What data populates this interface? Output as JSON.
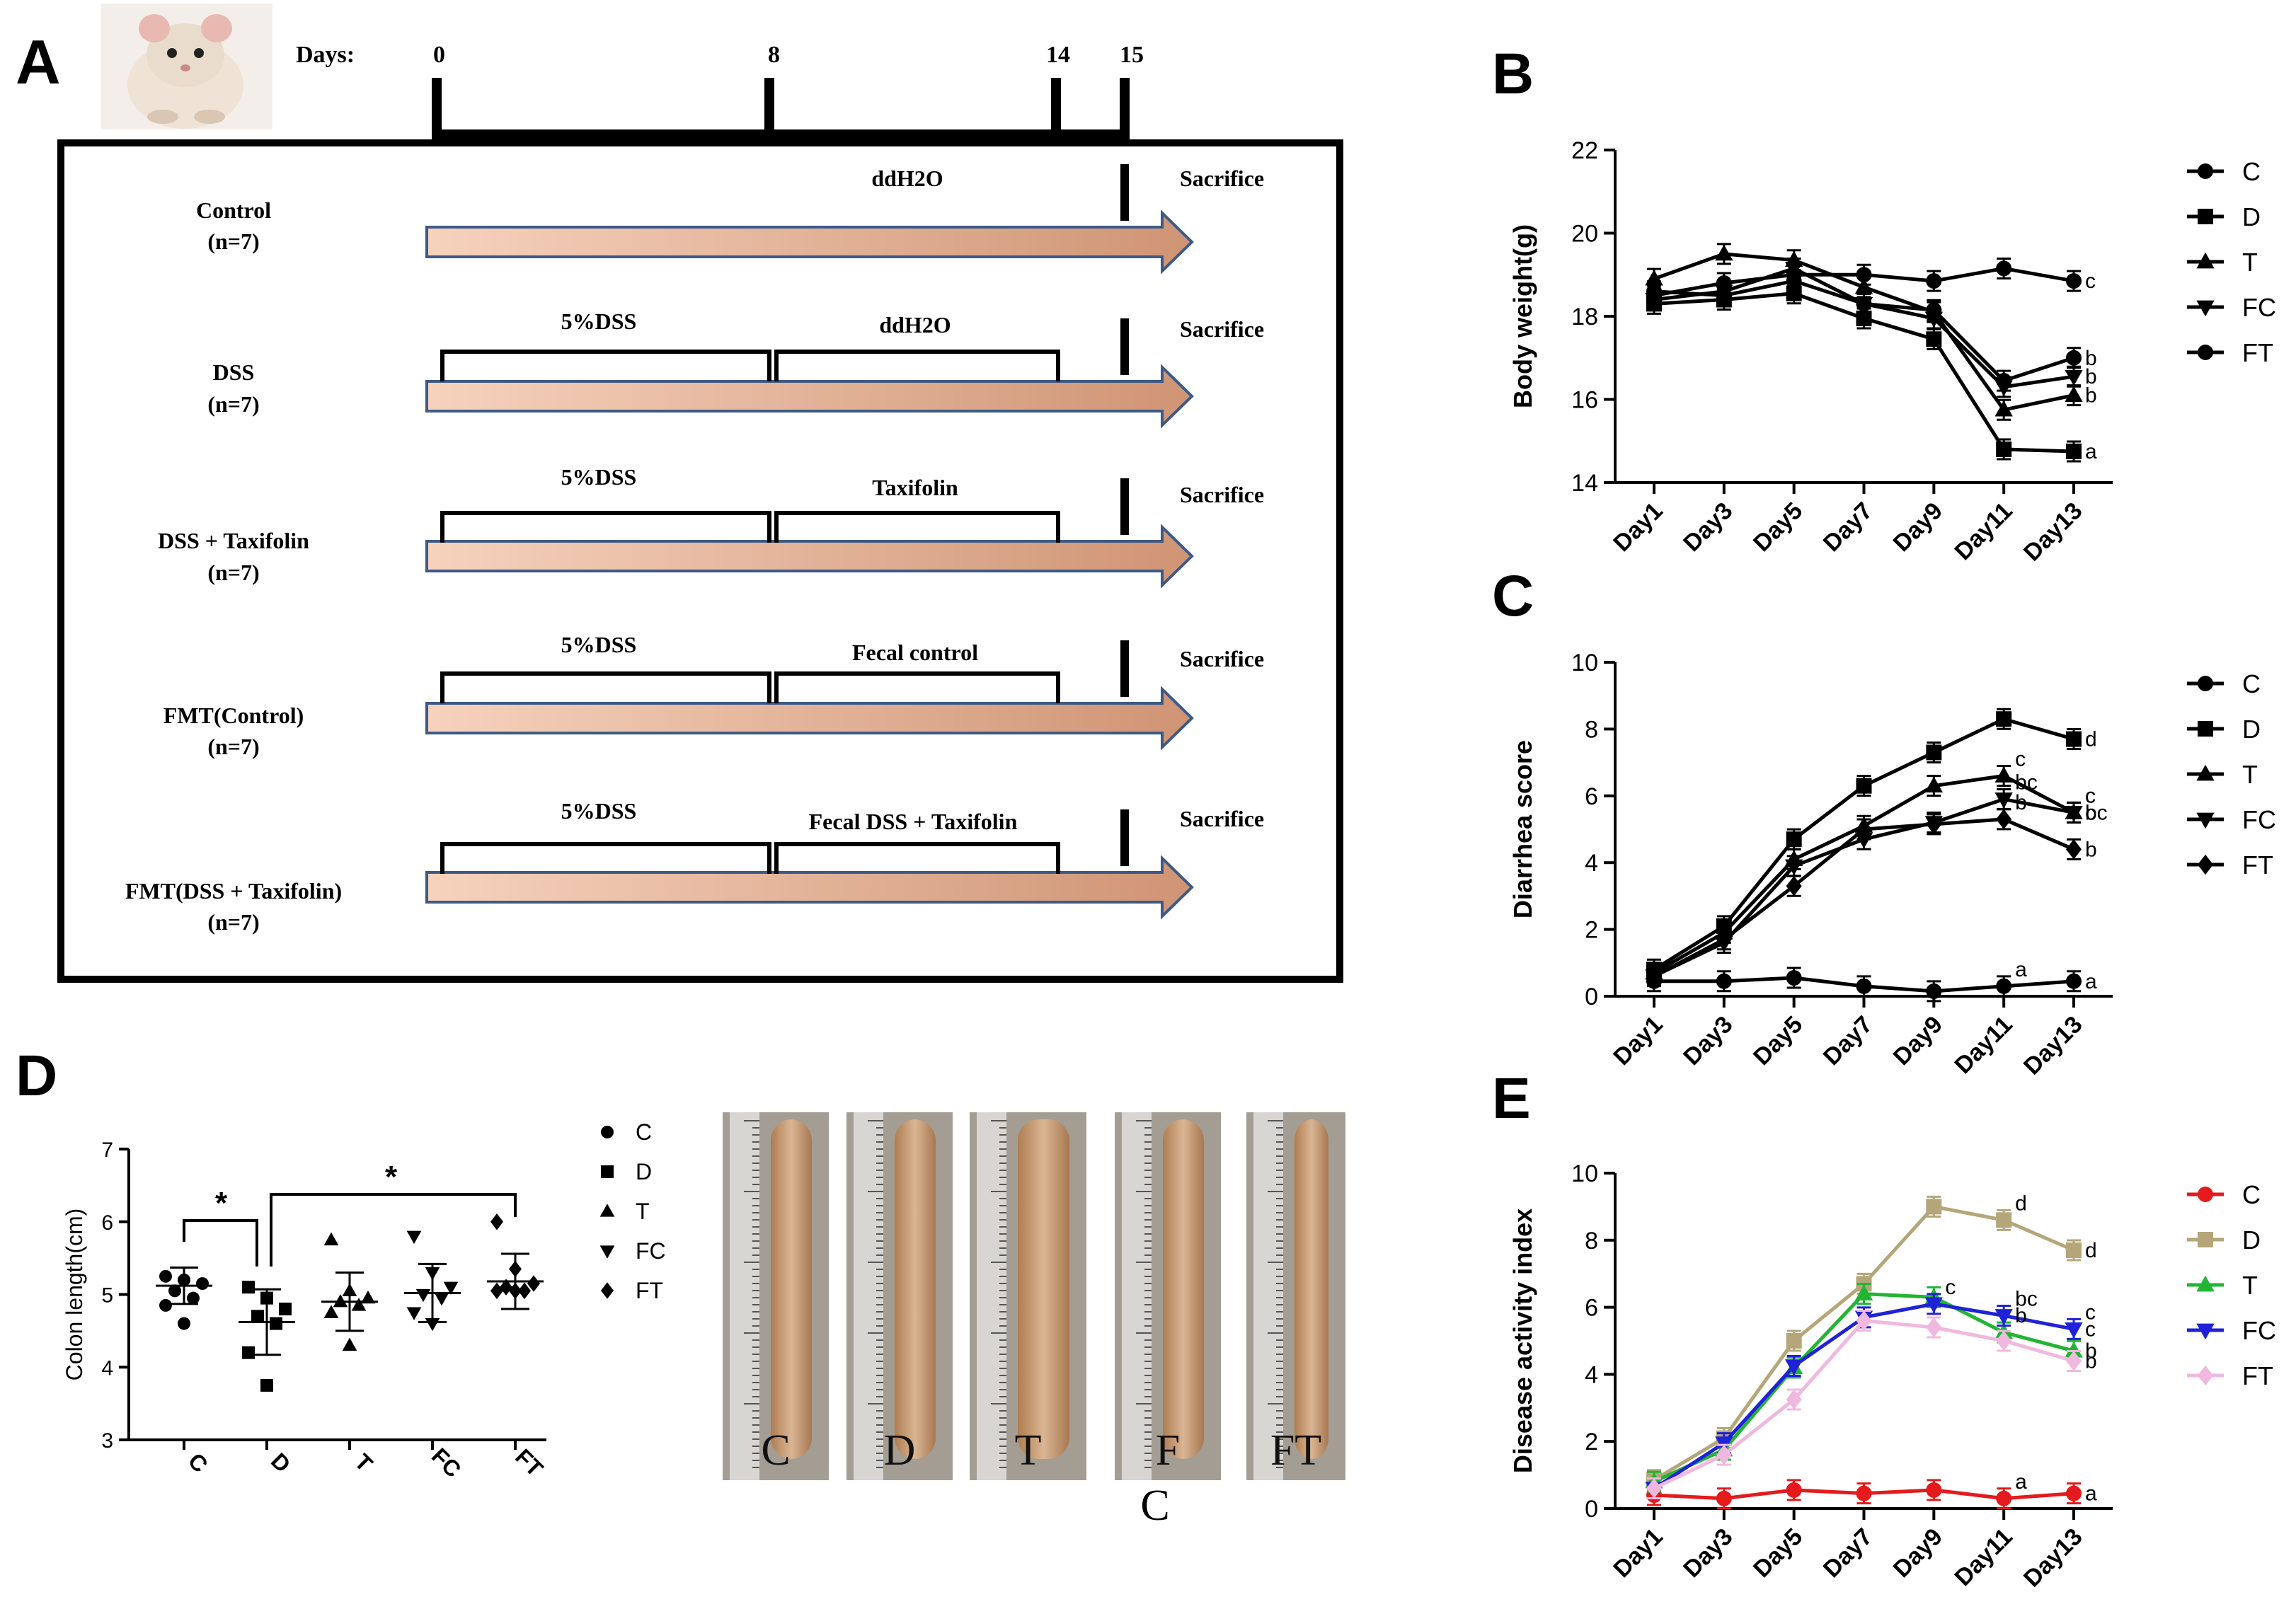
{
  "panelA": {
    "letter": "A",
    "days_label": "Days:",
    "day_ticks": [
      "0",
      "8",
      "14",
      "15"
    ],
    "groups": [
      {
        "name": "Control",
        "n": "(n=7)",
        "phase1": "",
        "phase2": "ddH2O",
        "end": "Sacrifice"
      },
      {
        "name": "DSS",
        "n": "(n=7)",
        "phase1": "5%DSS",
        "phase2": "ddH2O",
        "end": "Sacrifice"
      },
      {
        "name": "DSS + Taxifolin",
        "n": "(n=7)",
        "phase1": "5%DSS",
        "phase2": "Taxifolin",
        "end": "Sacrifice"
      },
      {
        "name": "FMT(Control)",
        "n": "(n=7)",
        "phase1": "5%DSS",
        "phase2": "Fecal control",
        "end": "Sacrifice"
      },
      {
        "name": "FMT(DSS + Taxifolin)",
        "n": "(n=7)",
        "phase1": "5%DSS",
        "phase2": "Fecal DSS + Taxifolin",
        "end": "Sacrifice"
      }
    ]
  },
  "panelD_photos": {
    "labels": [
      "C",
      "D",
      "T",
      "F",
      "FT"
    ],
    "caption": "C"
  },
  "colors": {
    "arrow_fill": "#e2b08f",
    "arrow_stroke": "#3d5a87",
    "red": "#e41a1c",
    "khaki": "#b5a67a",
    "green": "#22b534",
    "blue": "#1f22d6",
    "pink": "#f0b8df"
  },
  "chart_data": [
    {
      "id": "B",
      "letter": "B",
      "type": "line",
      "categories": [
        "Day1",
        "Day3",
        "Day5",
        "Day7",
        "Day9",
        "Day11",
        "Day13"
      ],
      "ylabel": "Body weight(g)",
      "ylim": [
        14,
        22
      ],
      "yticks": [
        "14",
        "16",
        "18",
        "20",
        "22"
      ],
      "series": [
        {
          "name": "C",
          "marker": "circle",
          "values": [
            18.5,
            18.8,
            19.0,
            19.0,
            18.85,
            19.15,
            18.85
          ],
          "letter": "c"
        },
        {
          "name": "D",
          "marker": "square",
          "values": [
            18.3,
            18.4,
            18.55,
            17.95,
            17.45,
            14.8,
            14.75
          ],
          "letter": "a"
        },
        {
          "name": "T",
          "marker": "triangle",
          "values": [
            18.9,
            19.5,
            19.35,
            18.7,
            18.1,
            15.75,
            16.1
          ],
          "letter": "b"
        },
        {
          "name": "FC",
          "marker": "tridown",
          "values": [
            18.4,
            18.6,
            19.15,
            18.3,
            17.95,
            16.3,
            16.55
          ],
          "letter": "b"
        },
        {
          "name": "FT",
          "marker": "circle",
          "values": [
            18.6,
            18.5,
            18.85,
            18.3,
            18.15,
            16.45,
            17.0
          ],
          "letter": "b"
        }
      ]
    },
    {
      "id": "C",
      "letter": "C",
      "type": "line",
      "categories": [
        "Day1",
        "Day3",
        "Day5",
        "Day7",
        "Day9",
        "Day11",
        "Day13"
      ],
      "ylabel": "Diarrhea score",
      "ylim": [
        0,
        10
      ],
      "yticks": [
        "0",
        "2",
        "4",
        "6",
        "8",
        "10"
      ],
      "series": [
        {
          "name": "C",
          "marker": "circle",
          "values": [
            0.45,
            0.45,
            0.55,
            0.3,
            0.15,
            0.3,
            0.45
          ],
          "letter": "a"
        },
        {
          "name": "D",
          "marker": "square",
          "values": [
            0.8,
            2.1,
            4.7,
            6.3,
            7.3,
            8.3,
            7.7
          ],
          "letter": "d"
        },
        {
          "name": "T",
          "marker": "triangle",
          "values": [
            0.7,
            1.9,
            4.1,
            5.1,
            6.3,
            6.6,
            5.5
          ],
          "letter": "c"
        },
        {
          "name": "FC",
          "marker": "tridown",
          "values": [
            0.6,
            1.6,
            3.9,
            4.7,
            5.2,
            5.9,
            5.5
          ],
          "letter": "bc"
        },
        {
          "name": "FT",
          "marker": "diamond",
          "values": [
            0.6,
            1.7,
            3.3,
            5.0,
            5.15,
            5.3,
            4.4
          ],
          "letter": "b"
        }
      ],
      "extra_letters": [
        {
          "series": "C",
          "index": 5,
          "text": "a"
        },
        {
          "series": "T",
          "index": 5,
          "text": "c"
        },
        {
          "series": "FC",
          "index": 5,
          "text": "bc"
        },
        {
          "series": "FT",
          "index": 5,
          "text": "b"
        },
        {
          "series": "T",
          "index": 6,
          "text": "c"
        },
        {
          "series": "FC",
          "index": 6,
          "text": "c"
        }
      ]
    },
    {
      "id": "E",
      "letter": "E",
      "type": "line",
      "categories": [
        "Day1",
        "Day3",
        "Day5",
        "Day7",
        "Day9",
        "Day11",
        "Day13"
      ],
      "ylabel": "Disease activity index",
      "ylim": [
        0,
        10
      ],
      "yticks": [
        "0",
        "2",
        "4",
        "6",
        "8",
        "10"
      ],
      "series": [
        {
          "name": "C",
          "marker": "circle",
          "color": "#e41a1c",
          "values": [
            0.4,
            0.3,
            0.55,
            0.45,
            0.55,
            0.3,
            0.45
          ],
          "letter": "a"
        },
        {
          "name": "D",
          "marker": "square",
          "color": "#b5a67a",
          "values": [
            0.85,
            2.1,
            5.0,
            6.7,
            9.0,
            8.6,
            7.7
          ],
          "letter": "d"
        },
        {
          "name": "T",
          "marker": "triangle",
          "color": "#22b534",
          "values": [
            0.8,
            1.75,
            4.2,
            6.4,
            6.3,
            5.25,
            4.7
          ],
          "letter": "b"
        },
        {
          "name": "FC",
          "marker": "tridown",
          "color": "#1f22d6",
          "values": [
            0.6,
            1.95,
            4.25,
            5.7,
            6.1,
            5.75,
            5.35
          ],
          "letter": "c"
        },
        {
          "name": "FT",
          "marker": "diamond",
          "color": "#f0b8df",
          "values": [
            0.6,
            1.6,
            3.25,
            5.6,
            5.4,
            5.0,
            4.4
          ],
          "letter": "b"
        }
      ],
      "extra_letters": [
        {
          "series": "C",
          "index": 5,
          "text": "a"
        },
        {
          "series": "D",
          "index": 5,
          "text": "d"
        },
        {
          "series": "FC",
          "index": 5,
          "text": "bc"
        },
        {
          "series": "T",
          "index": 5,
          "text": "b"
        },
        {
          "series": "FC",
          "index": 4,
          "text": "c"
        },
        {
          "series": "FC",
          "index": 6,
          "text": "c"
        }
      ]
    },
    {
      "id": "D",
      "letter": "D",
      "type": "scatter",
      "categories": [
        "C",
        "D",
        "T",
        "FC",
        "FT"
      ],
      "ylabel": "Colon length(cm)",
      "ylim": [
        3,
        7
      ],
      "yticks": [
        "3",
        "4",
        "5",
        "6",
        "7"
      ],
      "significance": [
        "*",
        "*"
      ],
      "groups": [
        {
          "name": "C",
          "marker": "circle",
          "mean": 5.12,
          "sd": 0.25,
          "points": [
            5.25,
            5.2,
            5.15,
            5.05,
            4.95,
            4.85,
            4.6
          ]
        },
        {
          "name": "D",
          "marker": "square",
          "mean": 4.62,
          "sd": 0.45,
          "points": [
            5.1,
            4.95,
            4.8,
            4.7,
            4.6,
            4.2,
            3.75
          ]
        },
        {
          "name": "T",
          "marker": "triangle",
          "mean": 4.9,
          "sd": 0.4,
          "points": [
            5.75,
            5.05,
            4.95,
            4.9,
            4.85,
            4.75,
            4.3
          ]
        },
        {
          "name": "FC",
          "marker": "tridown",
          "mean": 5.02,
          "sd": 0.4,
          "points": [
            5.8,
            5.3,
            5.1,
            5.0,
            4.95,
            4.75,
            4.6
          ]
        },
        {
          "name": "FT",
          "marker": "diamond",
          "mean": 5.18,
          "sd": 0.38,
          "points": [
            6.0,
            5.35,
            5.15,
            5.1,
            5.05,
            5.05,
            5.05
          ]
        }
      ]
    }
  ]
}
